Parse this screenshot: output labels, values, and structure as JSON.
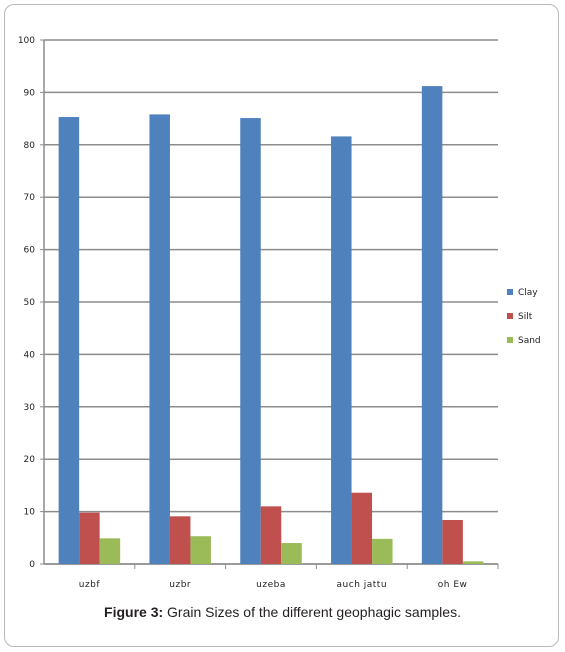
{
  "chart_data": {
    "type": "bar",
    "categories": [
      "uzbf",
      "uzbr",
      "uzeba",
      "auch jattu",
      "oh Ew"
    ],
    "series": [
      {
        "name": "Clay",
        "color": "#4f81bd",
        "values": [
          85.3,
          85.8,
          85.1,
          81.6,
          91.2
        ]
      },
      {
        "name": "Silt",
        "color": "#c0504d",
        "values": [
          9.8,
          9.1,
          11.0,
          13.6,
          8.4
        ]
      },
      {
        "name": "Sand",
        "color": "#9bbb59",
        "values": [
          4.9,
          5.3,
          4.0,
          4.8,
          0.5
        ]
      }
    ],
    "ylim": [
      0,
      100
    ],
    "yticks": [
      "0",
      "10",
      "20",
      "30",
      "40",
      "50",
      "60",
      "70",
      "80",
      "90",
      "100"
    ],
    "grid": true,
    "legend_position": "right"
  },
  "caption": {
    "label": "Figure 3:",
    "text": " Grain Sizes of the different geophagic samples."
  }
}
